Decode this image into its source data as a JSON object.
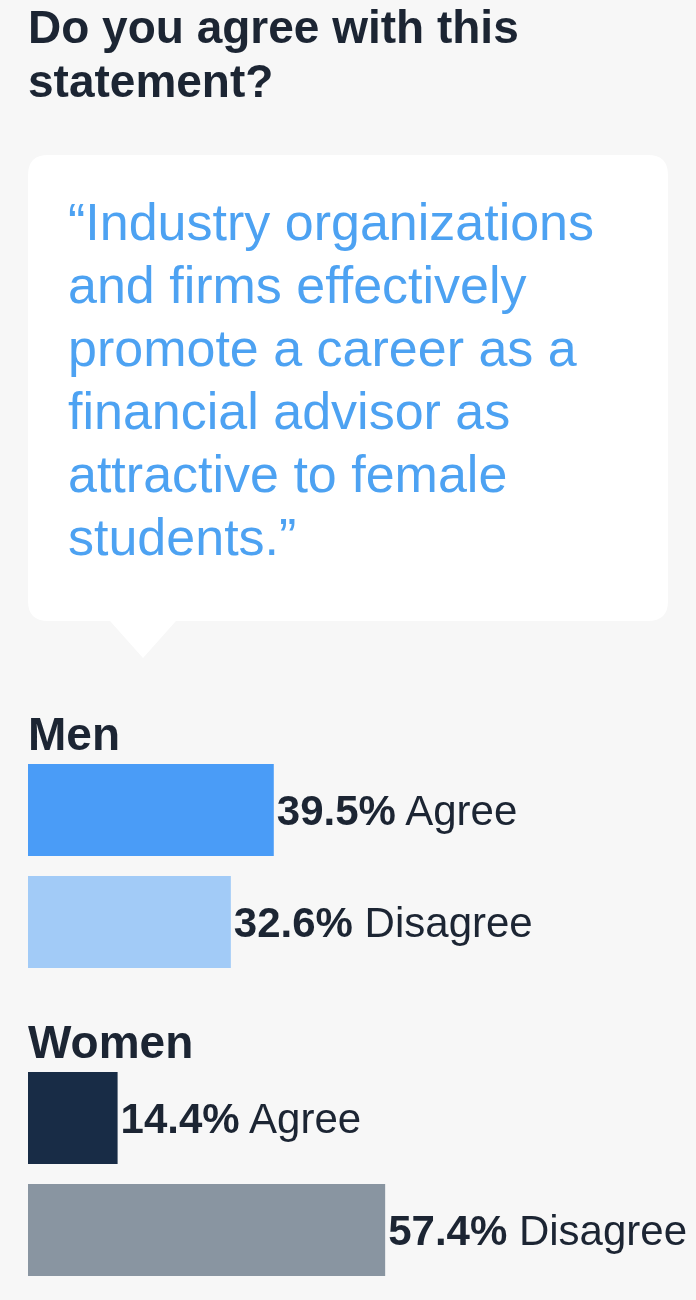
{
  "chart_data": [
    {
      "type": "other",
      "title": "Do you agree with this statement?",
      "subtitle": "“Industry organizations and firms effectively promote a career as a financial advisor as attractive to female students.”"
    },
    {
      "type": "bar",
      "orientation": "horizontal",
      "title": "Men",
      "categories": [
        null
      ],
      "series": [
        {
          "name": "Agree",
          "color": "#4a9cf7",
          "values": [
            39.5
          ],
          "value_labels": [
            "39.5%"
          ]
        },
        {
          "name": "Disagree",
          "color": "#a2cbf7",
          "values": [
            32.6
          ],
          "value_labels": [
            "32.6%"
          ]
        }
      ]
    },
    {
      "type": "bar",
      "orientation": "horizontal",
      "title": "Women",
      "categories": [
        null
      ],
      "series": [
        {
          "name": "Agree",
          "color": "#182c46",
          "values": [
            14.4
          ],
          "value_labels": [
            "14.4%"
          ]
        },
        {
          "name": "Disagree",
          "color": "#8995a1",
          "values": [
            57.4
          ],
          "value_labels": [
            "57.4%"
          ]
        }
      ]
    }
  ]
}
